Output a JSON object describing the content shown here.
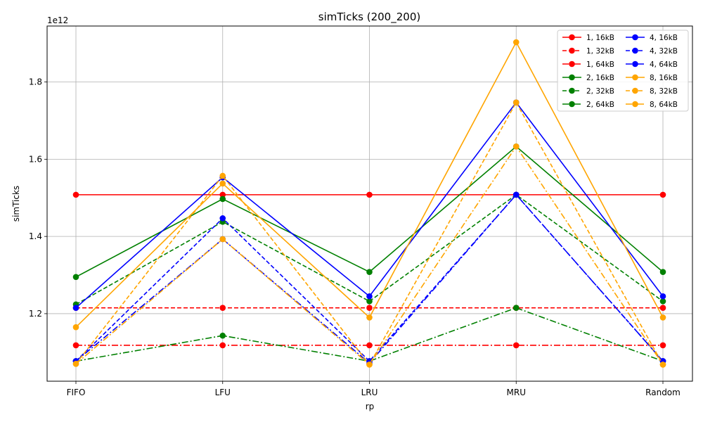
{
  "chart_data": {
    "type": "line",
    "title": "simTicks (200_200)",
    "xlabel": "rp",
    "ylabel": "simTicks",
    "y_offset_text": "1e12",
    "categories": [
      "FIFO",
      "LFU",
      "LRU",
      "MRU",
      "Random"
    ],
    "ylim": [
      1.025,
      1.945
    ],
    "yticks": [
      1.2,
      1.4,
      1.6,
      1.8
    ],
    "ytick_labels": [
      "1.2",
      "1.4",
      "1.6",
      "1.8"
    ],
    "grid": true,
    "legend": {
      "placement": "top-right",
      "columns": 2
    },
    "series": [
      {
        "name": "1, 16kB",
        "color": "#ff0000",
        "dash": "solid",
        "values": [
          1.508,
          1.508,
          1.508,
          1.508,
          1.508
        ]
      },
      {
        "name": "1, 32kB",
        "color": "#ff0000",
        "dash": "dashed",
        "values": [
          1.215,
          1.215,
          1.215,
          1.215,
          1.215
        ]
      },
      {
        "name": "1, 64kB",
        "color": "#ff0000",
        "dash": "dashdot",
        "values": [
          1.118,
          1.118,
          1.118,
          1.118,
          1.118
        ]
      },
      {
        "name": "2, 16kB",
        "color": "#008000",
        "dash": "solid",
        "values": [
          1.295,
          1.497,
          1.308,
          1.633,
          1.308
        ]
      },
      {
        "name": "2, 32kB",
        "color": "#008000",
        "dash": "dashed",
        "values": [
          1.224,
          1.438,
          1.232,
          1.508,
          1.232
        ]
      },
      {
        "name": "2, 64kB",
        "color": "#008000",
        "dash": "dashdot",
        "values": [
          1.077,
          1.143,
          1.077,
          1.215,
          1.077
        ]
      },
      {
        "name": "4, 16kB",
        "color": "#0000ff",
        "dash": "solid",
        "values": [
          1.215,
          1.553,
          1.245,
          1.747,
          1.245
        ]
      },
      {
        "name": "4, 32kB",
        "color": "#0000ff",
        "dash": "dashed",
        "values": [
          1.077,
          1.447,
          1.077,
          1.508,
          1.077
        ]
      },
      {
        "name": "4, 64kB",
        "color": "#0000ff",
        "dash": "dashdot",
        "values": [
          1.077,
          1.393,
          1.072,
          1.508,
          1.077
        ]
      },
      {
        "name": "8, 16kB",
        "color": "#ffa500",
        "dash": "solid",
        "values": [
          1.165,
          1.537,
          1.19,
          1.903,
          1.19
        ]
      },
      {
        "name": "8, 32kB",
        "color": "#ffa500",
        "dash": "dashed",
        "values": [
          1.07,
          1.557,
          1.068,
          1.747,
          1.068
        ]
      },
      {
        "name": "8, 64kB",
        "color": "#ffa500",
        "dash": "dashdot",
        "values": [
          1.07,
          1.393,
          1.068,
          1.633,
          1.068
        ]
      }
    ]
  }
}
